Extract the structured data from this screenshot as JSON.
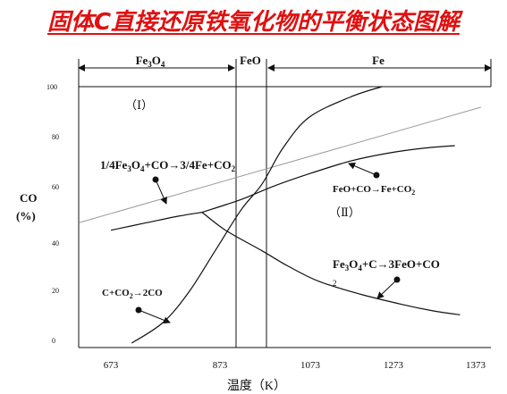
{
  "title": "固体C直接还原铁氧化物的平衡状态图解",
  "y_axis": {
    "label_line1": "CO",
    "label_line2": "(%)",
    "ticks": [
      "0",
      "20",
      "40",
      "60",
      "80",
      "100"
    ]
  },
  "x_axis": {
    "label": "温度（K）",
    "ticks": [
      "673",
      "873",
      "1073",
      "1273",
      "1373"
    ]
  },
  "regions_top": {
    "fe3o4": "Fe3O4",
    "feo": "FeO",
    "fe": "Fe"
  },
  "region_labels": {
    "one": "（Ⅰ）",
    "two": "（Ⅱ）"
  },
  "reactions": {
    "r1": "1/4Fe3O4+CO→3/4Fe+CO2",
    "r2": "FeO+CO→Fe+CO2",
    "r3_line1": "Fe3O4+C→3FeO+CO",
    "r3_line2": "2",
    "r4": "C+CO2→2CO"
  },
  "chart_data": {
    "type": "line",
    "xlabel": "温度（K）",
    "ylabel": "CO (%)",
    "xlim": [
      600,
      1380
    ],
    "ylim": [
      0,
      100
    ],
    "x_ticks": [
      673,
      873,
      1073,
      1273,
      1373
    ],
    "y_ticks": [
      0,
      20,
      40,
      60,
      80,
      100
    ],
    "series": [
      {
        "name": "C+CO2→2CO",
        "points": [
          [
            713,
            0
          ],
          [
            773,
            8
          ],
          [
            823,
            20
          ],
          [
            873,
            36
          ],
          [
            923,
            52
          ],
          [
            963,
            62
          ],
          [
            1003,
            76
          ],
          [
            1053,
            88
          ],
          [
            1133,
            96
          ],
          [
            1193,
            100
          ]
        ]
      },
      {
        "name": "1/4Fe3O4+CO→3/4Fe+CO2",
        "points": [
          [
            673,
            44
          ],
          [
            743,
            47
          ],
          [
            803,
            49.5
          ],
          [
            848,
            51
          ]
        ]
      },
      {
        "name": "FeO+CO→Fe+CO2",
        "points": [
          [
            848,
            51
          ],
          [
            923,
            56
          ],
          [
            983,
            61
          ],
          [
            1053,
            66
          ],
          [
            1133,
            71
          ],
          [
            1203,
            74
          ],
          [
            1273,
            76
          ],
          [
            1333,
            77
          ]
        ]
      },
      {
        "name": "Fe3O4+C→3FeO+CO2",
        "points": [
          [
            848,
            51
          ],
          [
            893,
            44
          ],
          [
            963,
            36
          ],
          [
            1013,
            30
          ],
          [
            1073,
            24
          ],
          [
            1153,
            19
          ],
          [
            1233,
            15
          ],
          [
            1293,
            12.5
          ],
          [
            1343,
            11
          ]
        ]
      },
      {
        "name": "",
        "points": [
          [
            613,
            47
          ],
          [
            1383,
            92
          ]
        ]
      }
    ],
    "boundaries_x": [
      905,
      960
    ],
    "bracket_boundaries_x": [
      905,
      980
    ]
  }
}
